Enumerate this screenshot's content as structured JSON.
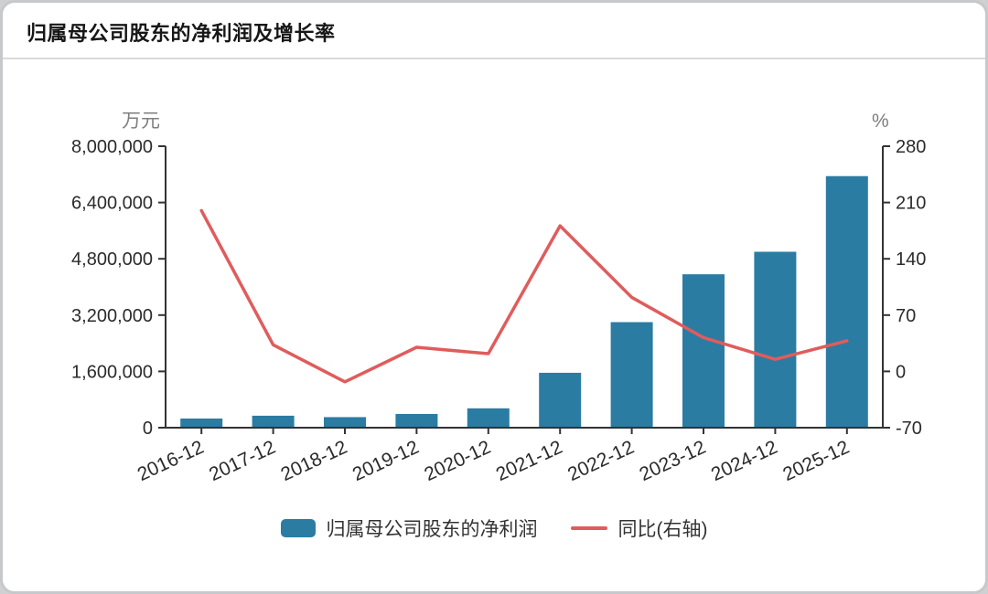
{
  "chart_data": {
    "type": "combo",
    "title": "归属母公司股东的净利润及增长率",
    "categories": [
      "2016-12",
      "2017-12",
      "2018-12",
      "2019-12",
      "2020-12",
      "2021-12",
      "2022-12",
      "2023-12",
      "2024-12",
      "2025-12"
    ],
    "series": [
      {
        "name": "归属母公司股东的净利润",
        "type": "bar",
        "axis": "left",
        "color": "#2b7ca3",
        "values": [
          260000,
          340000,
          300000,
          390000,
          550000,
          1560000,
          3000000,
          4360000,
          5000000,
          7150000
        ]
      },
      {
        "name": "同比(右轴)",
        "type": "line",
        "axis": "right",
        "color": "#e05c5c",
        "values": [
          200,
          33,
          -13,
          30,
          22,
          181,
          92,
          42,
          15,
          38
        ]
      }
    ],
    "left_axis": {
      "unit": "万元",
      "min": 0,
      "max": 8000000,
      "ticks": [
        0,
        1600000,
        3200000,
        4800000,
        6400000,
        8000000
      ]
    },
    "right_axis": {
      "unit": "%",
      "min": -70,
      "max": 280,
      "ticks": [
        -70,
        0,
        70,
        140,
        210,
        280
      ]
    },
    "legend_position": "bottom",
    "grid": false
  }
}
